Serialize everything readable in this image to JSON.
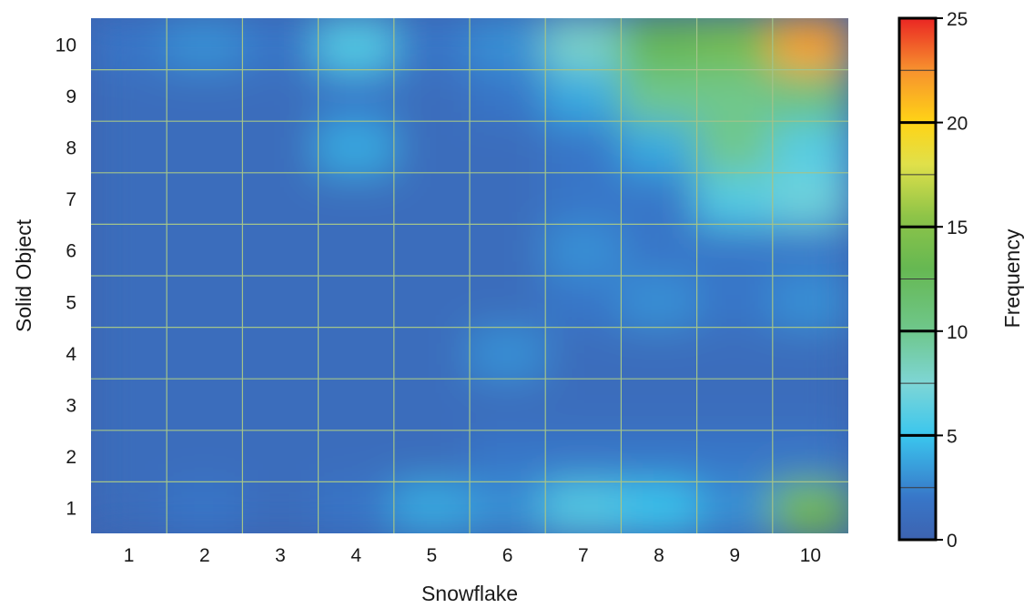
{
  "chart_data": {
    "type": "heatmap",
    "title": "",
    "xlabel": "Snowflake",
    "ylabel": "Solid Object",
    "x": [
      1,
      2,
      3,
      4,
      5,
      6,
      7,
      8,
      9,
      10
    ],
    "y": [
      1,
      2,
      3,
      4,
      5,
      6,
      7,
      8,
      9,
      10
    ],
    "x_tick_labels": [
      "1",
      "2",
      "3",
      "4",
      "5",
      "6",
      "7",
      "8",
      "9",
      "10"
    ],
    "y_tick_labels": [
      "1",
      "2",
      "3",
      "4",
      "5",
      "6",
      "7",
      "8",
      "9",
      "10"
    ],
    "values": [
      [
        1,
        2,
        1,
        2,
        4,
        3,
        6,
        5,
        3,
        14
      ],
      [
        1,
        1,
        1,
        1,
        1,
        2,
        2,
        2,
        2,
        2
      ],
      [
        1,
        1,
        1,
        1,
        1,
        1,
        1,
        1,
        1,
        1
      ],
      [
        1,
        1,
        1,
        1,
        1,
        3,
        1,
        1,
        1,
        1
      ],
      [
        1,
        1,
        1,
        1,
        1,
        1,
        2,
        3,
        2,
        3
      ],
      [
        1,
        1,
        1,
        1,
        1,
        1,
        3,
        2,
        2,
        2
      ],
      [
        1,
        1,
        1,
        1,
        1,
        1,
        2,
        2,
        6,
        7
      ],
      [
        1,
        1,
        1,
        4,
        1,
        1,
        2,
        4,
        10,
        6
      ],
      [
        1,
        1,
        1,
        2,
        1,
        2,
        4,
        10,
        10,
        11
      ],
      [
        2,
        3,
        2,
        6,
        2,
        3,
        8,
        13,
        14,
        22
      ]
    ],
    "colorbar": {
      "label": "Frequency",
      "min": 0,
      "max": 25,
      "ticks": [
        0,
        5,
        10,
        15,
        20,
        25
      ],
      "tick_labels": [
        "0",
        "5",
        "10",
        "15",
        "20",
        "25"
      ]
    },
    "grid": true
  }
}
